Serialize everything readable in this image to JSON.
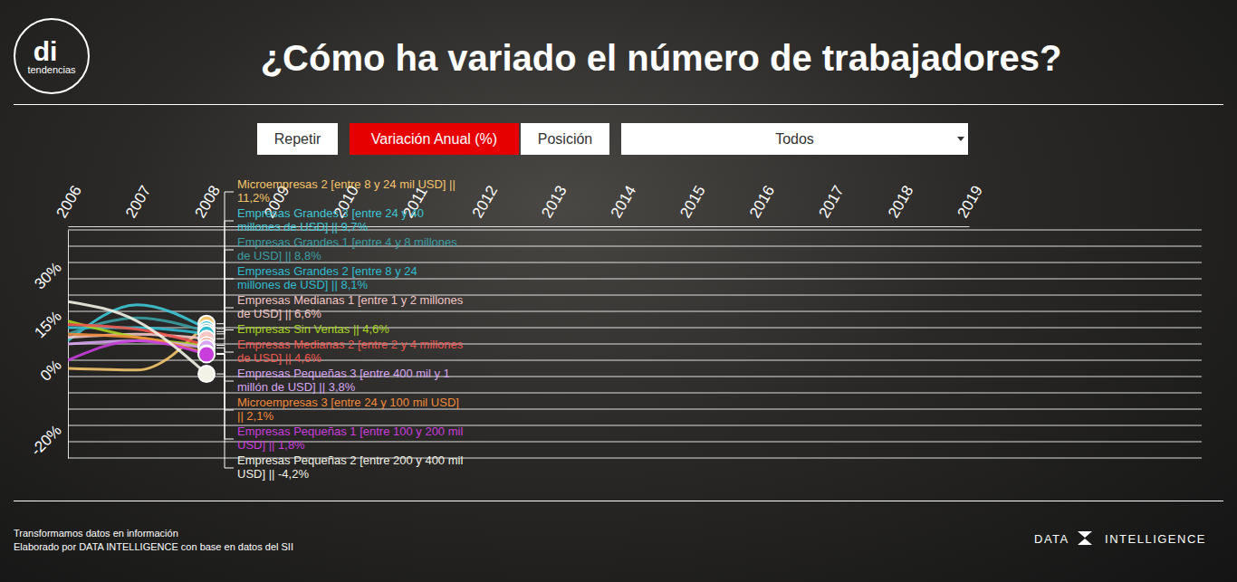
{
  "header": {
    "logo": "di",
    "logo_caption": "tendencias"
  },
  "controls": {
    "buttons": [
      {
        "label": "Repetir",
        "active": false
      },
      {
        "label": "Variación Anual (%)",
        "active": true
      },
      {
        "label": "Posición",
        "active": false
      }
    ],
    "dropdown": "Todos"
  },
  "chart_data": {
    "type": "line",
    "title": "¿Cómo ha variado el número de trabajadores?",
    "x": [
      2006,
      2007,
      2008
    ],
    "xlim": [
      2006,
      2019
    ],
    "xticks": [
      2006,
      2007,
      2008,
      2009,
      2010,
      2011,
      2012,
      2013,
      2014,
      2015,
      2016,
      2017,
      2018,
      2019
    ],
    "ylim": [
      -30,
      40
    ],
    "yticks": [
      {
        "value": -20,
        "label": "-20%"
      },
      {
        "value": 0,
        "label": "0%"
      },
      {
        "value": 15,
        "label": "15%"
      },
      {
        "value": 30,
        "label": "30%"
      }
    ],
    "grid": true,
    "marker": "circle",
    "series": [
      {
        "name": "Microempresas 2 [entre 8 y 24 mil USD]",
        "color": "#f5c56b",
        "values": [
          -2.5,
          -3.0,
          11.2
        ],
        "value_labels": [
          null,
          null,
          "|| 11,2%"
        ]
      },
      {
        "name": "Empresas Grandes 3 [entre 24 y 40 millones de USD]",
        "color": "#3ec6d6",
        "values": [
          6.0,
          17.0,
          9.7
        ],
        "value_labels": [
          null,
          null,
          "|| 9,7%"
        ]
      },
      {
        "name": "Empresas Grandes 1 [entre 4 y 8 millones de USD]",
        "color": "#3a9ea3",
        "values": [
          8.0,
          13.0,
          8.8
        ],
        "value_labels": [
          null,
          null,
          "|| 8,8%"
        ]
      },
      {
        "name": "Empresas Grandes 2 [entre 8 y 24 millones de USD]",
        "color": "#2fbcd0",
        "values": [
          10.0,
          10.0,
          8.1
        ],
        "value_labels": [
          null,
          null,
          "|| 8,1%"
        ]
      },
      {
        "name": "Empresas Medianas 1 [entre 1 y 2 millones de USD]",
        "color": "#f3c6c6",
        "values": [
          7.0,
          8.0,
          6.6
        ],
        "value_labels": [
          null,
          null,
          "|| 6,6%"
        ]
      },
      {
        "name": "Empresas Sin Ventas",
        "color": "#a8d420",
        "values": [
          12.0,
          7.0,
          4.6
        ],
        "value_labels": [
          null,
          null,
          "|| 4,6%"
        ]
      },
      {
        "name": "Empresas Medianas 2 [entre 2 y 4 millones de USD]",
        "color": "#f0564f",
        "values": [
          11.0,
          9.5,
          4.6
        ],
        "value_labels": [
          null,
          null,
          "|| 4,6%"
        ]
      },
      {
        "name": "Empresas Pequeñas 3 [entre 400 mil y 1 millón de USD]",
        "color": "#d7a6f0",
        "values": [
          5.0,
          6.0,
          3.8
        ],
        "value_labels": [
          null,
          null,
          "|| 3,8%"
        ]
      },
      {
        "name": "Microempresas 3 [entre 24 y 100 mil USD]",
        "color": "#f08a3c",
        "values": [
          8.0,
          7.0,
          2.1
        ],
        "value_labels": [
          null,
          null,
          "|| 2,1%"
        ]
      },
      {
        "name": "Empresas Pequeñas 1 [entre 100 y 200 mil USD]",
        "color": "#c93ddc",
        "values": [
          0.0,
          6.0,
          1.8
        ],
        "value_labels": [
          null,
          null,
          "|| 1,8%"
        ]
      },
      {
        "name": "Empresas Pequeñas 2 [entre 200 y 400 mil USD]",
        "color": "#f2f2e6",
        "values": [
          18.0,
          12.0,
          -4.2
        ],
        "value_labels": [
          null,
          null,
          "|| -4,2%"
        ]
      }
    ]
  },
  "footer": {
    "lines": [
      "Transformamos datos en información",
      "Elaborado por DATA INTELLIGENCE con base en datos del SII"
    ],
    "brand": [
      "DATA",
      "INTELLIGENCE"
    ]
  }
}
